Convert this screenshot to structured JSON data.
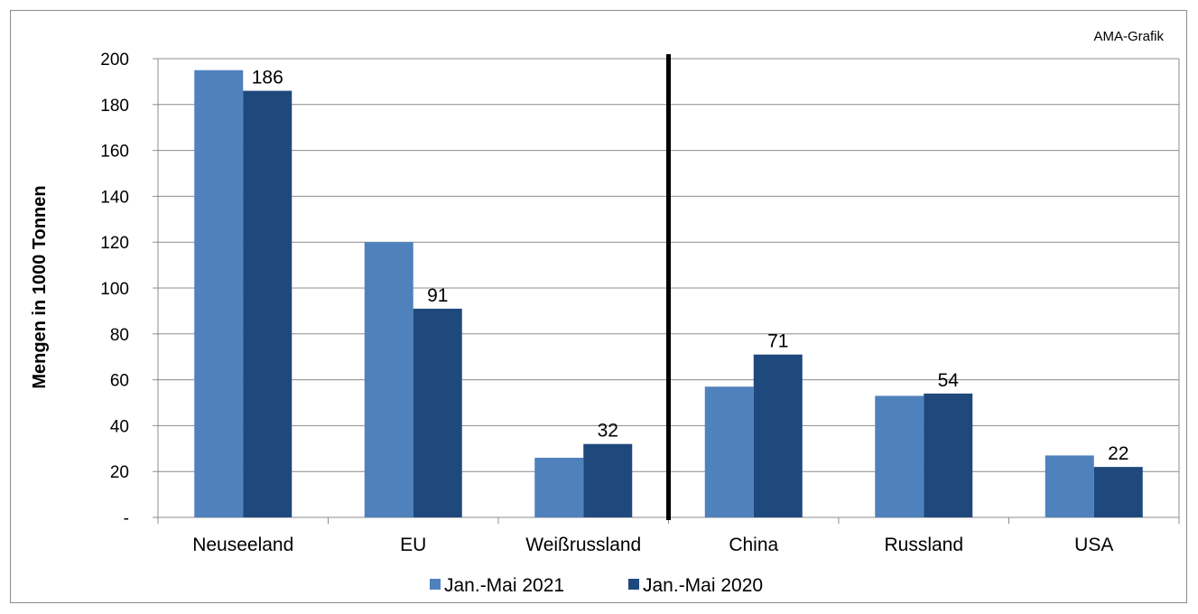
{
  "chart_data": {
    "type": "bar",
    "credit": "AMA-Grafik",
    "ylabel": "Mengen in 1000 Tonnen",
    "xlabel": "",
    "ylim": [
      0,
      200
    ],
    "yticks": [
      "-",
      "20",
      "40",
      "60",
      "80",
      "100",
      "120",
      "140",
      "160",
      "180",
      "200"
    ],
    "categories": [
      "Neuseeland",
      "EU",
      "Weißrussland",
      "China",
      "Russland",
      "USA"
    ],
    "series": [
      {
        "name": "Jan.-Mai 2021",
        "values": [
          195,
          120,
          26,
          57,
          53,
          27
        ],
        "color": "#4f81bd"
      },
      {
        "name": "Jan.-Mai 2020",
        "values": [
          186,
          91,
          32,
          71,
          54,
          22
        ],
        "color": "#1f497d"
      }
    ],
    "data_labels": [
      "186",
      "91",
      "32",
      "71",
      "54",
      "22"
    ],
    "divider_after_category": 3,
    "grid": true,
    "legend_position": "bottom"
  }
}
